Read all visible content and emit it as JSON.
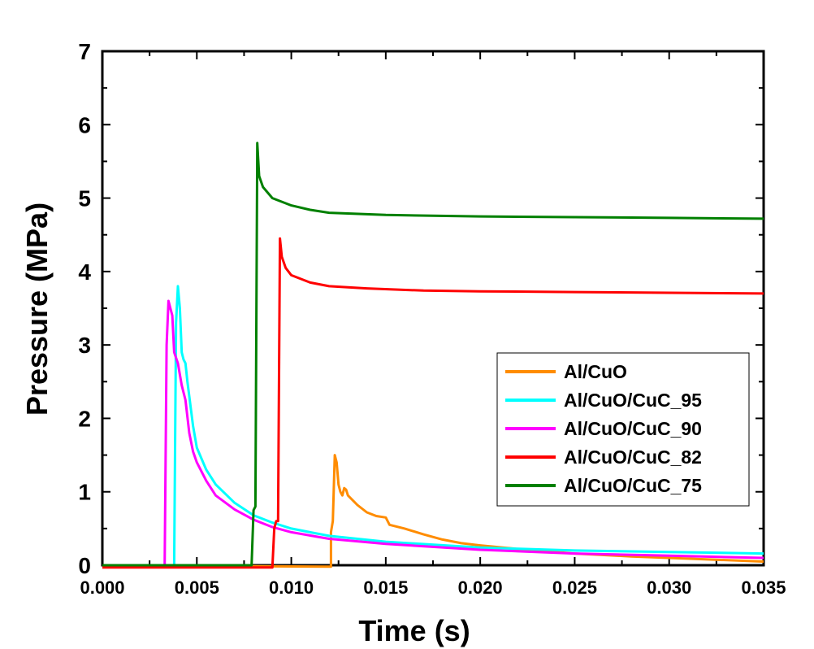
{
  "chart_data": {
    "type": "line",
    "title": "",
    "xlabel": "Time (s)",
    "ylabel": "Pressure (MPa)",
    "xlim": [
      0,
      0.035
    ],
    "ylim": [
      0,
      7
    ],
    "x_ticks": [
      "0.000",
      "0.005",
      "0.010",
      "0.015",
      "0.020",
      "0.025",
      "0.030",
      "0.035"
    ],
    "y_ticks": [
      "0",
      "1",
      "2",
      "3",
      "4",
      "5",
      "6",
      "7"
    ],
    "grid": false,
    "legend_position": "lower-right",
    "series": [
      {
        "name": "Al/CuO",
        "color": "#ff8c00",
        "points": [
          [
            0,
            0
          ],
          [
            0.0121,
            -0.02
          ],
          [
            0.0121,
            0.45
          ],
          [
            0.0122,
            0.6
          ],
          [
            0.0123,
            1.5
          ],
          [
            0.0124,
            1.4
          ],
          [
            0.0125,
            1.1
          ],
          [
            0.0126,
            1.0
          ],
          [
            0.0127,
            0.95
          ],
          [
            0.0128,
            1.05
          ],
          [
            0.0129,
            1.03
          ],
          [
            0.013,
            0.95
          ],
          [
            0.0135,
            0.82
          ],
          [
            0.014,
            0.72
          ],
          [
            0.0145,
            0.67
          ],
          [
            0.015,
            0.65
          ],
          [
            0.0152,
            0.55
          ],
          [
            0.016,
            0.5
          ],
          [
            0.017,
            0.42
          ],
          [
            0.018,
            0.35
          ],
          [
            0.019,
            0.3
          ],
          [
            0.02,
            0.27
          ],
          [
            0.022,
            0.22
          ],
          [
            0.025,
            0.16
          ],
          [
            0.028,
            0.12
          ],
          [
            0.031,
            0.09
          ],
          [
            0.035,
            0.05
          ]
        ]
      },
      {
        "name": "Al/CuO/CuC_95",
        "color": "#00ffff",
        "points": [
          [
            0,
            0
          ],
          [
            0.0038,
            0
          ],
          [
            0.0039,
            3.3
          ],
          [
            0.004,
            3.8
          ],
          [
            0.0041,
            3.5
          ],
          [
            0.0042,
            2.9
          ],
          [
            0.0043,
            2.8
          ],
          [
            0.0044,
            2.75
          ],
          [
            0.0045,
            2.5
          ],
          [
            0.0046,
            2.3
          ],
          [
            0.0048,
            1.9
          ],
          [
            0.005,
            1.6
          ],
          [
            0.0055,
            1.3
          ],
          [
            0.006,
            1.1
          ],
          [
            0.007,
            0.85
          ],
          [
            0.008,
            0.68
          ],
          [
            0.009,
            0.58
          ],
          [
            0.01,
            0.5
          ],
          [
            0.012,
            0.4
          ],
          [
            0.015,
            0.32
          ],
          [
            0.02,
            0.24
          ],
          [
            0.025,
            0.2
          ],
          [
            0.03,
            0.18
          ],
          [
            0.035,
            0.16
          ]
        ]
      },
      {
        "name": "Al/CuO/CuC_90",
        "color": "#ff00ff",
        "points": [
          [
            0,
            0
          ],
          [
            0.0033,
            0
          ],
          [
            0.0034,
            3.0
          ],
          [
            0.0035,
            3.6
          ],
          [
            0.0036,
            3.5
          ],
          [
            0.0037,
            3.4
          ],
          [
            0.0038,
            2.9
          ],
          [
            0.004,
            2.75
          ],
          [
            0.0042,
            2.45
          ],
          [
            0.0044,
            2.25
          ],
          [
            0.0046,
            1.8
          ],
          [
            0.0048,
            1.55
          ],
          [
            0.005,
            1.4
          ],
          [
            0.0055,
            1.15
          ],
          [
            0.006,
            0.95
          ],
          [
            0.007,
            0.76
          ],
          [
            0.008,
            0.62
          ],
          [
            0.009,
            0.52
          ],
          [
            0.01,
            0.45
          ],
          [
            0.012,
            0.36
          ],
          [
            0.015,
            0.29
          ],
          [
            0.02,
            0.21
          ],
          [
            0.025,
            0.16
          ],
          [
            0.03,
            0.13
          ],
          [
            0.035,
            0.1
          ]
        ]
      },
      {
        "name": "Al/CuO/CuC_82",
        "color": "#ff0000",
        "points": [
          [
            0,
            -0.03
          ],
          [
            0.009,
            -0.03
          ],
          [
            0.0091,
            0.5
          ],
          [
            0.0092,
            0.6
          ],
          [
            0.0093,
            0.6
          ],
          [
            0.0094,
            4.45
          ],
          [
            0.0095,
            4.2
          ],
          [
            0.0097,
            4.05
          ],
          [
            0.01,
            3.95
          ],
          [
            0.011,
            3.85
          ],
          [
            0.012,
            3.8
          ],
          [
            0.014,
            3.77
          ],
          [
            0.017,
            3.74
          ],
          [
            0.02,
            3.73
          ],
          [
            0.025,
            3.72
          ],
          [
            0.03,
            3.71
          ],
          [
            0.035,
            3.7
          ]
        ]
      },
      {
        "name": "Al/CuO/CuC_75",
        "color": "#008000",
        "points": [
          [
            0,
            0
          ],
          [
            0.0079,
            0
          ],
          [
            0.008,
            0.75
          ],
          [
            0.0081,
            0.8
          ],
          [
            0.0082,
            5.75
          ],
          [
            0.0083,
            5.3
          ],
          [
            0.0085,
            5.15
          ],
          [
            0.009,
            5.0
          ],
          [
            0.01,
            4.9
          ],
          [
            0.011,
            4.84
          ],
          [
            0.012,
            4.8
          ],
          [
            0.015,
            4.77
          ],
          [
            0.02,
            4.75
          ],
          [
            0.025,
            4.74
          ],
          [
            0.03,
            4.73
          ],
          [
            0.035,
            4.72
          ]
        ]
      }
    ]
  }
}
